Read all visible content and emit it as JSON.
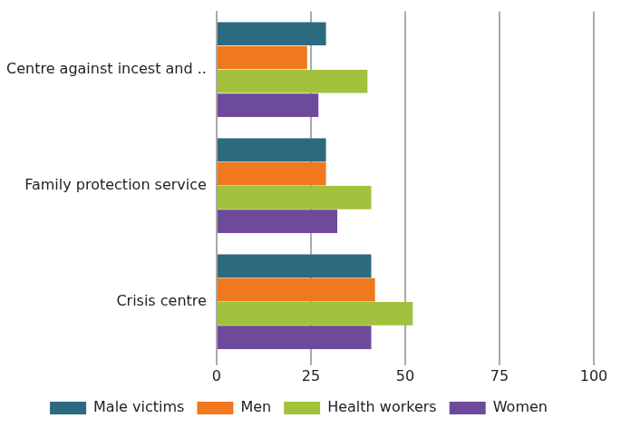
{
  "chart_data": {
    "type": "bar",
    "orientation": "horizontal",
    "categories": [
      "Centre against incest and ..",
      "Family protection service",
      "Crisis centre"
    ],
    "series": [
      {
        "name": "Male victims",
        "color": "#2b6a7f",
        "values": [
          29,
          29,
          41
        ]
      },
      {
        "name": "Men",
        "color": "#f0781e",
        "values": [
          24,
          29,
          42
        ]
      },
      {
        "name": "Health workers",
        "color": "#a2c13c",
        "values": [
          40,
          41,
          52
        ]
      },
      {
        "name": "Women",
        "color": "#6e4a9b",
        "values": [
          27,
          32,
          41
        ]
      }
    ],
    "xlim": [
      0,
      100
    ],
    "xticks": [
      0,
      25,
      50,
      75,
      100
    ],
    "grid": true,
    "legend": "bottom"
  }
}
